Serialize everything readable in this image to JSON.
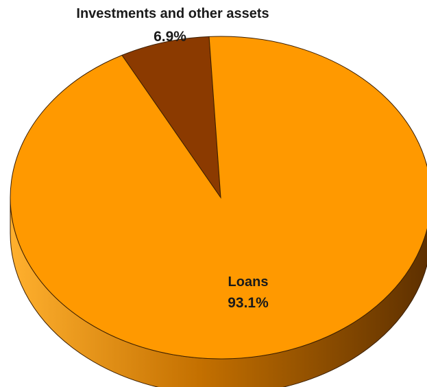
{
  "chart_data": {
    "type": "pie",
    "style": "3d",
    "slices": [
      {
        "label": "Investments and other assets",
        "value": 6.9,
        "value_label": "6.9%",
        "color": "#8B3A00"
      },
      {
        "label": "Loans",
        "value": 93.1,
        "value_label": "93.1%",
        "color": "#FF9900"
      }
    ],
    "legend": "none",
    "title": ""
  }
}
